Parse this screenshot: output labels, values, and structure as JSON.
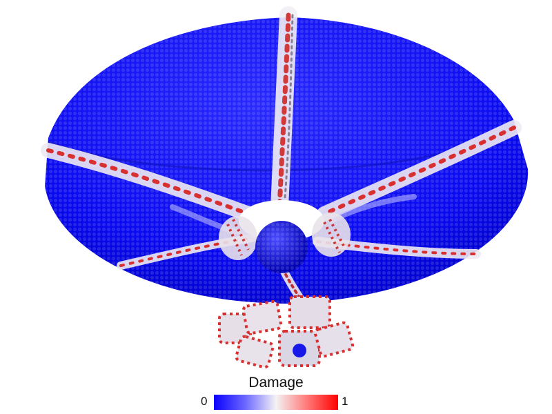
{
  "figure": {
    "colorbar": {
      "title": "Damage",
      "min_label": "0",
      "max_label": "1",
      "colors": [
        "#0a00ff",
        "#6a66ff",
        "#f4f2f5",
        "#ff7a78",
        "#ff0000"
      ]
    },
    "palette": {
      "intact": "#0a0af0",
      "damaged": "#e02020",
      "partial": "#e8e4ea"
    }
  }
}
